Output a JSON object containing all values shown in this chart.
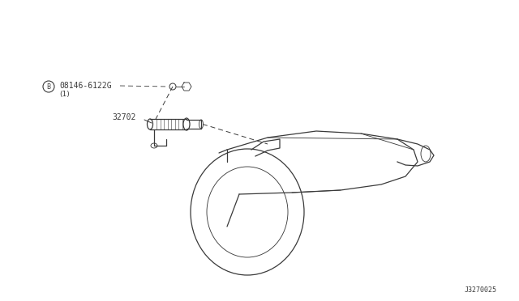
{
  "bg_color": "#ffffff",
  "line_color": "#3a3a3a",
  "text_color": "#3a3a3a",
  "fig_width": 6.4,
  "fig_height": 3.72,
  "dpi": 100,
  "diagram_id": "J3270025",
  "part_label_1": "08146-6122G",
  "part_sub_1": "(1)",
  "part_label_2": "32702",
  "circle_label": "B"
}
